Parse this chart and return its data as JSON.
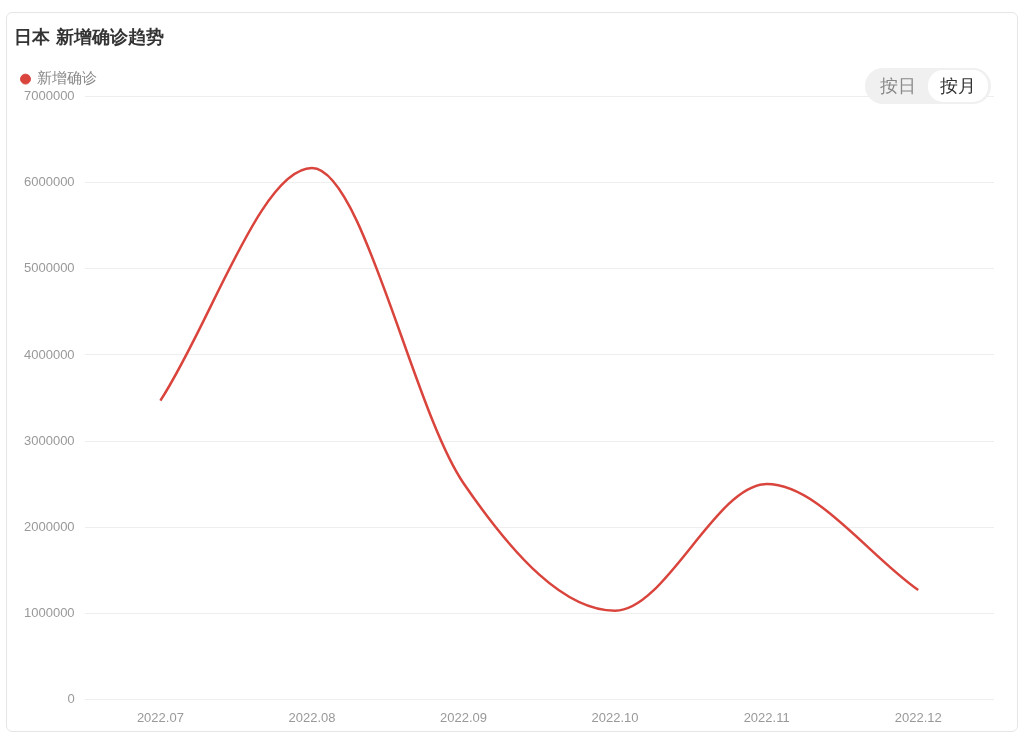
{
  "chart_data": {
    "type": "line",
    "title": "日本 新增确诊趋势",
    "categories": [
      "2022.07",
      "2022.08",
      "2022.09",
      "2022.10",
      "2022.11",
      "2022.12"
    ],
    "series": [
      {
        "name": "新增确诊",
        "color": "#d9443c",
        "values": [
          3470000,
          6170000,
          2510000,
          1030000,
          2500000,
          1270000
        ]
      }
    ],
    "ylim": [
      0,
      7000000
    ],
    "yticks": [
      0,
      1000000,
      2000000,
      3000000,
      4000000,
      5000000,
      6000000,
      7000000
    ],
    "grid": "y",
    "legend": "top left",
    "marker": "none",
    "line_style": "solid",
    "annotations": [
      "按日",
      "按月"
    ]
  }
}
